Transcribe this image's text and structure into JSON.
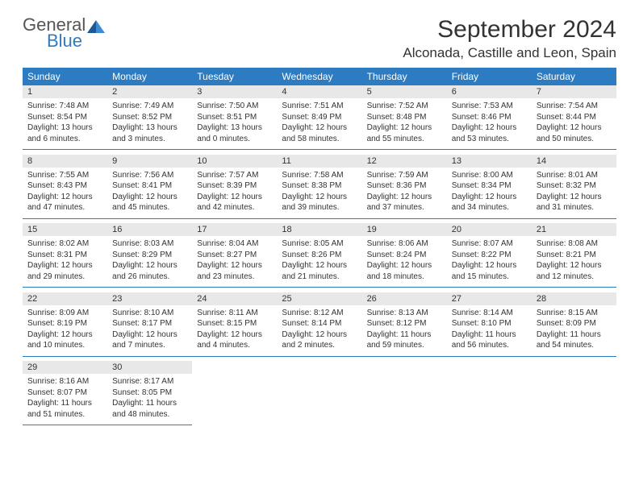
{
  "logo": {
    "general": "General",
    "blue": "Blue"
  },
  "header": {
    "monthTitle": "September 2024",
    "location": "Alconada, Castille and Leon, Spain"
  },
  "colors": {
    "headerBg": "#2d7bc0",
    "headerText": "#ffffff",
    "dayNumBg": "#e8e8e8",
    "borderColor": "#2d7bc0"
  },
  "dayNames": [
    "Sunday",
    "Monday",
    "Tuesday",
    "Wednesday",
    "Thursday",
    "Friday",
    "Saturday"
  ],
  "weeks": [
    [
      {
        "num": "1",
        "sunrise": "Sunrise: 7:48 AM",
        "sunset": "Sunset: 8:54 PM",
        "daylight": "Daylight: 13 hours and 6 minutes."
      },
      {
        "num": "2",
        "sunrise": "Sunrise: 7:49 AM",
        "sunset": "Sunset: 8:52 PM",
        "daylight": "Daylight: 13 hours and 3 minutes."
      },
      {
        "num": "3",
        "sunrise": "Sunrise: 7:50 AM",
        "sunset": "Sunset: 8:51 PM",
        "daylight": "Daylight: 13 hours and 0 minutes."
      },
      {
        "num": "4",
        "sunrise": "Sunrise: 7:51 AM",
        "sunset": "Sunset: 8:49 PM",
        "daylight": "Daylight: 12 hours and 58 minutes."
      },
      {
        "num": "5",
        "sunrise": "Sunrise: 7:52 AM",
        "sunset": "Sunset: 8:48 PM",
        "daylight": "Daylight: 12 hours and 55 minutes."
      },
      {
        "num": "6",
        "sunrise": "Sunrise: 7:53 AM",
        "sunset": "Sunset: 8:46 PM",
        "daylight": "Daylight: 12 hours and 53 minutes."
      },
      {
        "num": "7",
        "sunrise": "Sunrise: 7:54 AM",
        "sunset": "Sunset: 8:44 PM",
        "daylight": "Daylight: 12 hours and 50 minutes."
      }
    ],
    [
      {
        "num": "8",
        "sunrise": "Sunrise: 7:55 AM",
        "sunset": "Sunset: 8:43 PM",
        "daylight": "Daylight: 12 hours and 47 minutes."
      },
      {
        "num": "9",
        "sunrise": "Sunrise: 7:56 AM",
        "sunset": "Sunset: 8:41 PM",
        "daylight": "Daylight: 12 hours and 45 minutes."
      },
      {
        "num": "10",
        "sunrise": "Sunrise: 7:57 AM",
        "sunset": "Sunset: 8:39 PM",
        "daylight": "Daylight: 12 hours and 42 minutes."
      },
      {
        "num": "11",
        "sunrise": "Sunrise: 7:58 AM",
        "sunset": "Sunset: 8:38 PM",
        "daylight": "Daylight: 12 hours and 39 minutes."
      },
      {
        "num": "12",
        "sunrise": "Sunrise: 7:59 AM",
        "sunset": "Sunset: 8:36 PM",
        "daylight": "Daylight: 12 hours and 37 minutes."
      },
      {
        "num": "13",
        "sunrise": "Sunrise: 8:00 AM",
        "sunset": "Sunset: 8:34 PM",
        "daylight": "Daylight: 12 hours and 34 minutes."
      },
      {
        "num": "14",
        "sunrise": "Sunrise: 8:01 AM",
        "sunset": "Sunset: 8:32 PM",
        "daylight": "Daylight: 12 hours and 31 minutes."
      }
    ],
    [
      {
        "num": "15",
        "sunrise": "Sunrise: 8:02 AM",
        "sunset": "Sunset: 8:31 PM",
        "daylight": "Daylight: 12 hours and 29 minutes."
      },
      {
        "num": "16",
        "sunrise": "Sunrise: 8:03 AM",
        "sunset": "Sunset: 8:29 PM",
        "daylight": "Daylight: 12 hours and 26 minutes."
      },
      {
        "num": "17",
        "sunrise": "Sunrise: 8:04 AM",
        "sunset": "Sunset: 8:27 PM",
        "daylight": "Daylight: 12 hours and 23 minutes."
      },
      {
        "num": "18",
        "sunrise": "Sunrise: 8:05 AM",
        "sunset": "Sunset: 8:26 PM",
        "daylight": "Daylight: 12 hours and 21 minutes."
      },
      {
        "num": "19",
        "sunrise": "Sunrise: 8:06 AM",
        "sunset": "Sunset: 8:24 PM",
        "daylight": "Daylight: 12 hours and 18 minutes."
      },
      {
        "num": "20",
        "sunrise": "Sunrise: 8:07 AM",
        "sunset": "Sunset: 8:22 PM",
        "daylight": "Daylight: 12 hours and 15 minutes."
      },
      {
        "num": "21",
        "sunrise": "Sunrise: 8:08 AM",
        "sunset": "Sunset: 8:21 PM",
        "daylight": "Daylight: 12 hours and 12 minutes."
      }
    ],
    [
      {
        "num": "22",
        "sunrise": "Sunrise: 8:09 AM",
        "sunset": "Sunset: 8:19 PM",
        "daylight": "Daylight: 12 hours and 10 minutes."
      },
      {
        "num": "23",
        "sunrise": "Sunrise: 8:10 AM",
        "sunset": "Sunset: 8:17 PM",
        "daylight": "Daylight: 12 hours and 7 minutes."
      },
      {
        "num": "24",
        "sunrise": "Sunrise: 8:11 AM",
        "sunset": "Sunset: 8:15 PM",
        "daylight": "Daylight: 12 hours and 4 minutes."
      },
      {
        "num": "25",
        "sunrise": "Sunrise: 8:12 AM",
        "sunset": "Sunset: 8:14 PM",
        "daylight": "Daylight: 12 hours and 2 minutes."
      },
      {
        "num": "26",
        "sunrise": "Sunrise: 8:13 AM",
        "sunset": "Sunset: 8:12 PM",
        "daylight": "Daylight: 11 hours and 59 minutes."
      },
      {
        "num": "27",
        "sunrise": "Sunrise: 8:14 AM",
        "sunset": "Sunset: 8:10 PM",
        "daylight": "Daylight: 11 hours and 56 minutes."
      },
      {
        "num": "28",
        "sunrise": "Sunrise: 8:15 AM",
        "sunset": "Sunset: 8:09 PM",
        "daylight": "Daylight: 11 hours and 54 minutes."
      }
    ],
    [
      {
        "num": "29",
        "sunrise": "Sunrise: 8:16 AM",
        "sunset": "Sunset: 8:07 PM",
        "daylight": "Daylight: 11 hours and 51 minutes."
      },
      {
        "num": "30",
        "sunrise": "Sunrise: 8:17 AM",
        "sunset": "Sunset: 8:05 PM",
        "daylight": "Daylight: 11 hours and 48 minutes."
      },
      null,
      null,
      null,
      null,
      null
    ]
  ]
}
